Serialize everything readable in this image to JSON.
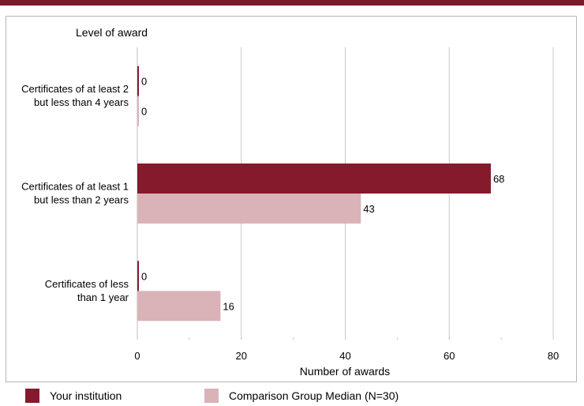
{
  "chart_data": {
    "type": "bar",
    "orientation": "horizontal",
    "title": "",
    "ylabel": "Level of award",
    "xlabel": "Number of awards",
    "categories": [
      [
        "Certificates of at least 2",
        "but less than 4 years"
      ],
      [
        "Certificates of at least 1",
        "but  less than 2 years"
      ],
      [
        "Certificates of less",
        "than 1 year"
      ]
    ],
    "series": [
      {
        "name": "Your institution",
        "color": "#851a2c",
        "values": [
          0,
          68,
          0
        ]
      },
      {
        "name": "Comparison Group Median (N=30)",
        "color": "#d9b3b8",
        "values": [
          0,
          43,
          16
        ]
      }
    ],
    "xlim": [
      0,
      80
    ],
    "xticks": [
      0,
      20,
      40,
      60,
      80
    ],
    "grid": true,
    "legend_position": "bottom"
  }
}
